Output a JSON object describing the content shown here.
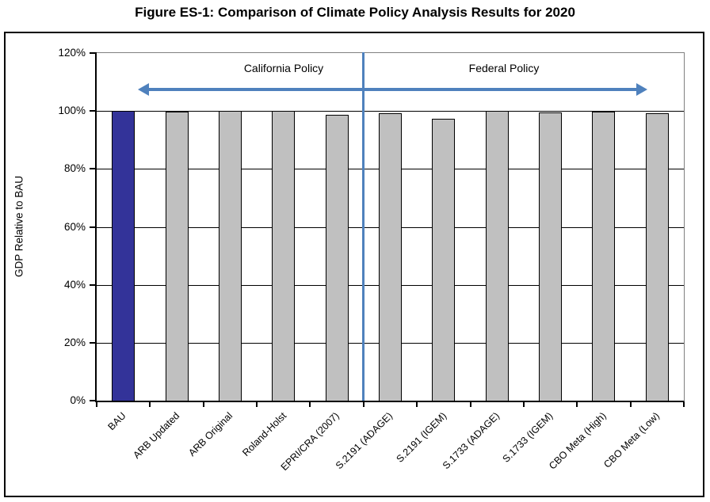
{
  "title": "Figure ES-1: Comparison of Climate Policy Analysis Results for 2020",
  "colors": {
    "bau_bar": "#333399",
    "policy_bar": "#C0C0C0",
    "bar_border": "#000000",
    "gridline": "#000000",
    "separator_line": "#4F81BD",
    "span_arrow": "#4F81BD"
  },
  "chart_data": {
    "type": "bar",
    "title": "Figure ES-1: Comparison of Climate Policy Analysis Results for 2020",
    "ylabel": "GDP Relative to BAU",
    "xlabel": "",
    "categories": [
      "BAU",
      "ARB Updated",
      "ARB Original",
      "Roland-Holst",
      "EPRI/CRA (2007)",
      "S.2191 (ADAGE)",
      "S.2191 (IGEM)",
      "S.1733 (ADAGE)",
      "S.1733 (IGEM)",
      "CBO Meta (High)",
      "CBO Meta (Low)"
    ],
    "values": [
      100,
      99.7,
      100,
      100,
      98.6,
      99.3,
      97.4,
      100,
      99.4,
      99.8,
      99.3
    ],
    "highlight_index": 0,
    "ylim": [
      0,
      120
    ],
    "yticks": [
      0,
      20,
      40,
      60,
      80,
      100,
      120
    ],
    "ytick_labels": [
      "0%",
      "20%",
      "40%",
      "60%",
      "80%",
      "100%",
      "120%"
    ],
    "grid": "horizontal",
    "legend": "none",
    "separator_index": 5,
    "section_labels": [
      "California Policy",
      "Federal Policy"
    ]
  }
}
